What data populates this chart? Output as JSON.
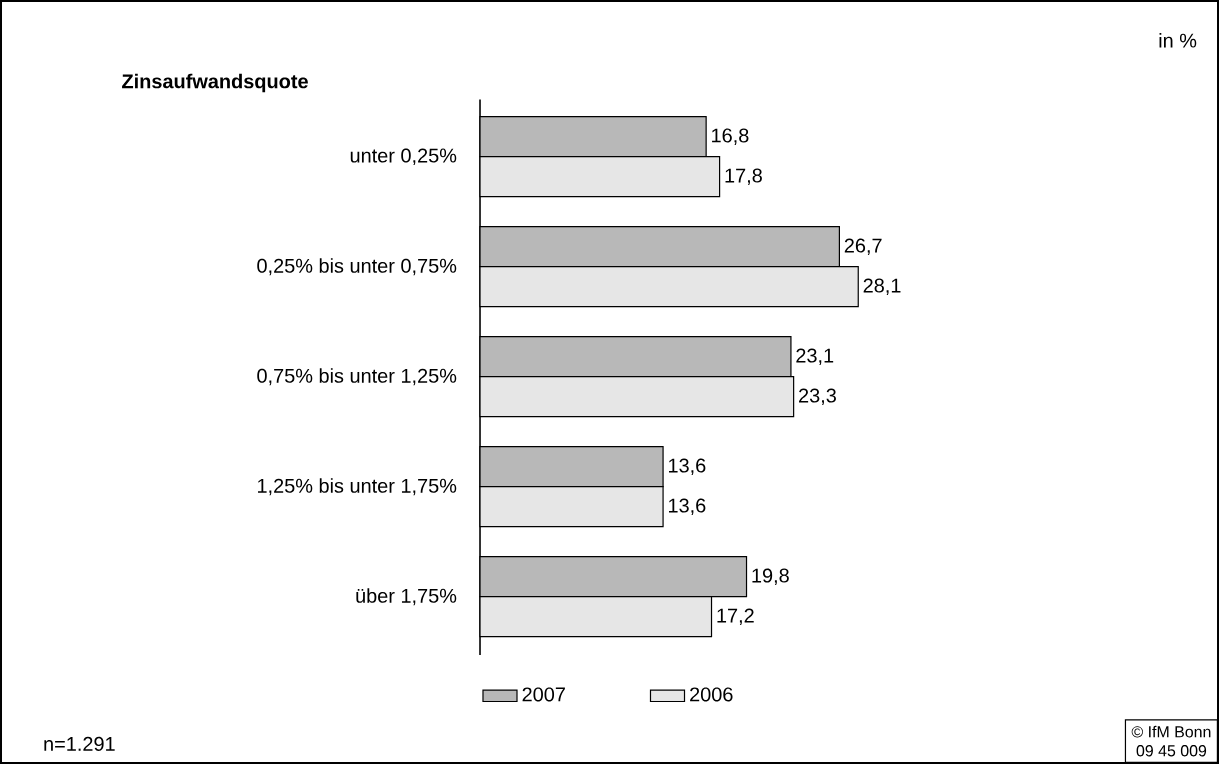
{
  "chart_data": {
    "type": "bar",
    "orientation": "horizontal",
    "title": "Zinsaufwandsquote",
    "annotations": [
      "in %",
      "n=1.291",
      "© IfM Bonn",
      "09 45 009"
    ],
    "categories": [
      "unter 0,25%",
      "0,25% bis unter 0,75%",
      "0,75% bis unter 1,25%",
      "1,25% bis unter 1,75%",
      "über 1,75%"
    ],
    "series": [
      {
        "name": "2007",
        "color": "#b8b8b8",
        "values": [
          16.8,
          26.7,
          23.1,
          13.6,
          19.8
        ],
        "value_labels": [
          "16,8",
          "26,7",
          "23,1",
          "13,6",
          "19,8"
        ]
      },
      {
        "name": "2006",
        "color": "#e6e6e6",
        "values": [
          17.8,
          28.1,
          23.3,
          13.6,
          17.2
        ],
        "value_labels": [
          "17,8",
          "28,1",
          "23,3",
          "13,6",
          "17,2"
        ]
      }
    ],
    "legend": "bottom"
  }
}
